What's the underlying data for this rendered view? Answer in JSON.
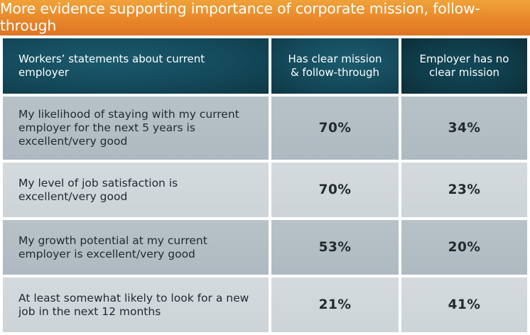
{
  "title": "More evidence supporting importance of corporate mission, follow-through",
  "colors": {
    "title_bar": "#e8872a",
    "header_bg": "#144a5b",
    "row_dark": "#b2bec4",
    "row_light": "#d1d7da",
    "title_text": "#ffffff"
  },
  "chart_data": {
    "type": "table",
    "columns": [
      "Workers’ statements about current employer",
      "Has clear mission & follow-through",
      "Employer has no clear mission"
    ],
    "rows": [
      {
        "statement": "My likelihood of staying with my current employer for the next 5 years is excellent/very good",
        "has_clear_mission": "70%",
        "no_clear_mission": "34%"
      },
      {
        "statement": "My level of job satisfaction is excellent/very good",
        "has_clear_mission": "70%",
        "no_clear_mission": "23%"
      },
      {
        "statement": "My growth potential at my current employer is excellent/very good",
        "has_clear_mission": "53%",
        "no_clear_mission": "20%"
      },
      {
        "statement": "At least somewhat likely to look for a new job in the next 12 months",
        "has_clear_mission": "21%",
        "no_clear_mission": "41%"
      }
    ]
  }
}
